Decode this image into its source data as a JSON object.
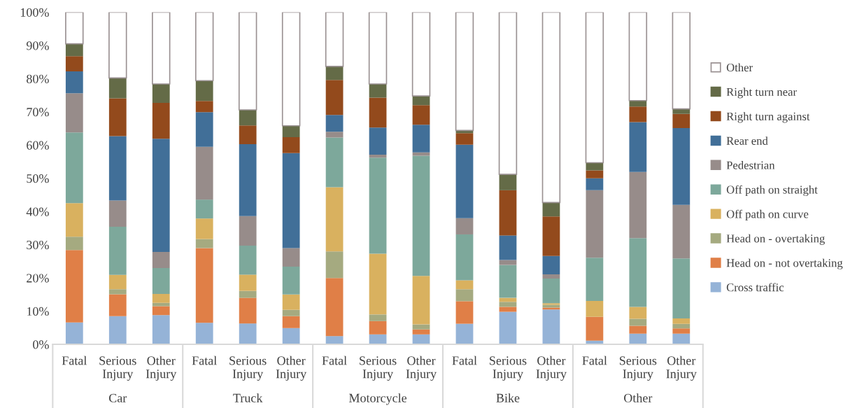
{
  "chart_data": {
    "type": "bar",
    "stacked": true,
    "categories": [
      "Fatal",
      "Serious Injury",
      "Other Injury",
      "Fatal",
      "Serious Injury",
      "Other Injury",
      "Fatal",
      "Serious Injury",
      "Other Injury",
      "Fatal",
      "Serious Injury",
      "Other Injury",
      "Fatal",
      "Serious Injury",
      "Other Injury"
    ],
    "annotations": [
      "Car",
      "Truck",
      "Motorcycle",
      "Bike",
      "Other"
    ],
    "ylim": [
      0,
      100
    ],
    "yticks": [
      {
        "value": 0,
        "label": "0%"
      },
      {
        "value": 10,
        "label": "10%"
      },
      {
        "value": 20,
        "label": "20%"
      },
      {
        "value": 30,
        "label": "30%"
      },
      {
        "value": 40,
        "label": "40%"
      },
      {
        "value": 50,
        "label": "50%"
      },
      {
        "value": 60,
        "label": "60%"
      },
      {
        "value": 70,
        "label": "70%"
      },
      {
        "value": 80,
        "label": "80%"
      },
      {
        "value": 90,
        "label": "90%"
      },
      {
        "value": 100,
        "label": "100%"
      }
    ],
    "grid": false,
    "legend": "right",
    "series": [
      {
        "name": "Cross traffic",
        "color": "#95b3d7",
        "values": [
          6.6,
          8.5,
          8.8,
          6.5,
          6.3,
          4.9,
          2.5,
          3.0,
          3.0,
          6.2,
          9.8,
          10.5,
          1.1,
          3.2,
          3.2
        ]
      },
      {
        "name": "Head on - not overtaking",
        "color": "#e07f47",
        "values": [
          21.8,
          6.6,
          2.7,
          22.5,
          7.7,
          3.6,
          17.5,
          4.0,
          1.5,
          6.8,
          1.5,
          0.6,
          7.2,
          2.4,
          1.6
        ]
      },
      {
        "name": "Head on - overtaking",
        "color": "#a5aa80",
        "values": [
          4.0,
          1.5,
          1.0,
          2.7,
          2.1,
          1.9,
          8.0,
          2.0,
          1.5,
          3.6,
          1.5,
          0.8,
          0,
          2.1,
          1.4
        ]
      },
      {
        "name": "Off path on curve",
        "color": "#d9b15f",
        "values": [
          10.1,
          4.3,
          2.7,
          6.2,
          4.9,
          4.6,
          19.3,
          18.3,
          14.6,
          2.7,
          1.2,
          0.5,
          4.8,
          3.6,
          1.6
        ]
      },
      {
        "name": "Off path on straight",
        "color": "#7da89b",
        "values": [
          21.3,
          14.5,
          7.8,
          5.7,
          8.7,
          8.4,
          15.0,
          28.9,
          36.2,
          13.8,
          9.9,
          7.4,
          13.0,
          20.7,
          18.1
        ]
      },
      {
        "name": "Pedestrian",
        "color": "#978c8a",
        "values": [
          11.8,
          7.9,
          4.8,
          15.9,
          8.9,
          5.6,
          1.7,
          0.9,
          1.0,
          4.9,
          1.5,
          1.3,
          20.3,
          19.9,
          16.1
        ]
      },
      {
        "name": "Rear end",
        "color": "#416f98",
        "values": [
          6.6,
          19.4,
          34.1,
          10.4,
          21.7,
          28.6,
          5.1,
          8.2,
          8.3,
          22.1,
          7.4,
          5.5,
          3.6,
          15.0,
          23.1
        ]
      },
      {
        "name": "Right turn against",
        "color": "#934a1c",
        "values": [
          4.6,
          11.4,
          10.8,
          3.4,
          5.6,
          4.8,
          10.5,
          9.0,
          5.9,
          3.5,
          13.6,
          11.9,
          2.4,
          4.7,
          4.3
        ]
      },
      {
        "name": "Right turn near",
        "color": "#646b47",
        "values": [
          3.7,
          6.1,
          5.7,
          6.1,
          4.7,
          3.4,
          4.1,
          4.1,
          2.8,
          0.8,
          4.8,
          4.2,
          2.3,
          1.8,
          1.5
        ]
      },
      {
        "name": "Other",
        "color": "#ffffff",
        "values": [
          9.5,
          19.8,
          21.6,
          20.6,
          29.4,
          34.2,
          16.3,
          21.6,
          25.2,
          35.6,
          48.8,
          57.3,
          45.3,
          26.6,
          29.1
        ]
      }
    ]
  }
}
